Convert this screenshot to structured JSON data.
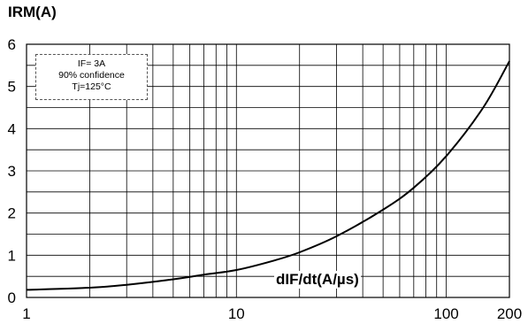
{
  "chart_data": {
    "type": "line",
    "ylabel": "IRM(A)",
    "xlabel": "dIF/dt(A/µs)",
    "x_scale": "log",
    "xlim": [
      1,
      200
    ],
    "ylim": [
      0,
      6
    ],
    "x_ticks": [
      "1",
      "10",
      "100",
      "200"
    ],
    "y_ticks": [
      "0",
      "1",
      "2",
      "3",
      "4",
      "5",
      "6"
    ],
    "grid": true,
    "legend_lines": [
      "IF= 3A",
      "90% confidence",
      "Tj=125°C"
    ],
    "series": [
      {
        "x": [
          1,
          2,
          3,
          5,
          7,
          10,
          15,
          20,
          30,
          50,
          70,
          100,
          150,
          200
        ],
        "y": [
          0.18,
          0.23,
          0.3,
          0.43,
          0.54,
          0.65,
          0.87,
          1.07,
          1.45,
          2.08,
          2.6,
          3.35,
          4.5,
          5.6
        ]
      }
    ]
  }
}
